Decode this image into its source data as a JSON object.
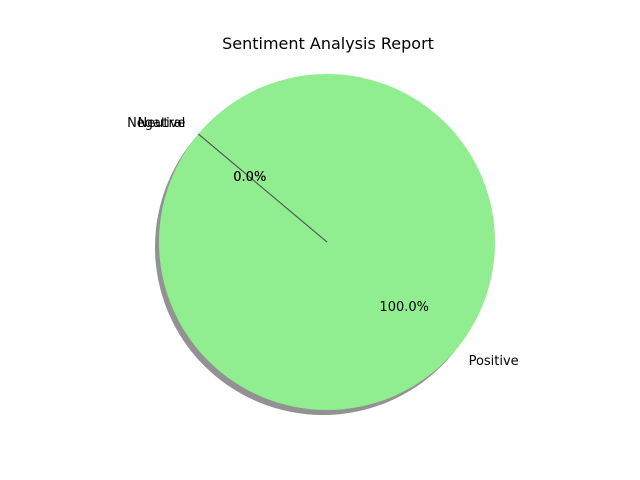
{
  "chart_data": {
    "type": "pie",
    "title": "Sentiment Analysis Report",
    "slices": [
      {
        "label": "Positive",
        "value": 100.0,
        "percent_label": "100.0%",
        "color": "#90ee90"
      },
      {
        "label": "Negative",
        "value": 0.0,
        "percent_label": "0.0%",
        "color": "#ff9999"
      },
      {
        "label": "Neutral",
        "value": 0.0,
        "percent_label": "0.0%",
        "color": "#66b3ff"
      }
    ],
    "shadow": true,
    "start_angle_deg": 140,
    "autopct_format": "%1.1f%%"
  }
}
